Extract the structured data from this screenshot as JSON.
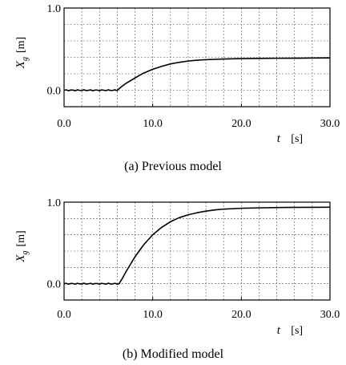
{
  "chart_data": [
    {
      "type": "line",
      "caption": "(a) Previous model",
      "xlabel": "t",
      "xunit": "[s]",
      "ylabel": "X",
      "ylabel_sub": "g",
      "yunit": "[m]",
      "xlim": [
        0,
        30
      ],
      "ylim": [
        -0.2,
        1.0
      ],
      "xticks": [
        0.0,
        10.0,
        20.0,
        30.0
      ],
      "xtick_labels": [
        "0.0",
        "10.0",
        "20.0",
        "30.0"
      ],
      "yticks": [
        0.0,
        1.0
      ],
      "ytick_labels": [
        "0.0",
        "1.0"
      ],
      "grid": true,
      "series": [
        {
          "x": [
            0,
            6.0,
            6.5,
            7,
            8,
            9,
            10,
            11,
            12,
            13,
            14,
            15,
            16,
            18,
            20,
            22,
            24,
            26,
            28,
            30
          ],
          "y": [
            0.0,
            0.0,
            0.045,
            0.085,
            0.15,
            0.21,
            0.255,
            0.29,
            0.32,
            0.34,
            0.355,
            0.365,
            0.372,
            0.38,
            0.385,
            0.387,
            0.389,
            0.39,
            0.392,
            0.393
          ]
        }
      ]
    },
    {
      "type": "line",
      "caption": "(b) Modified model",
      "xlabel": "t",
      "xunit": "[s]",
      "ylabel": "X",
      "ylabel_sub": "g",
      "yunit": "[m]",
      "xlim": [
        0,
        30
      ],
      "ylim": [
        -0.2,
        1.0
      ],
      "xticks": [
        0.0,
        10.0,
        20.0,
        30.0
      ],
      "xtick_labels": [
        "0.0",
        "10.0",
        "20.0",
        "30.0"
      ],
      "yticks": [
        0.0,
        1.0
      ],
      "ytick_labels": [
        "0.0",
        "1.0"
      ],
      "grid": true,
      "series": [
        {
          "x": [
            0,
            6.2,
            6.6,
            7,
            8,
            9,
            10,
            11,
            12,
            13,
            14,
            15,
            16,
            17,
            18,
            20,
            22,
            25,
            28,
            30
          ],
          "y": [
            0.0,
            0.0,
            0.07,
            0.15,
            0.33,
            0.48,
            0.6,
            0.69,
            0.76,
            0.81,
            0.845,
            0.87,
            0.89,
            0.905,
            0.915,
            0.925,
            0.93,
            0.935,
            0.937,
            0.938
          ]
        }
      ]
    }
  ]
}
